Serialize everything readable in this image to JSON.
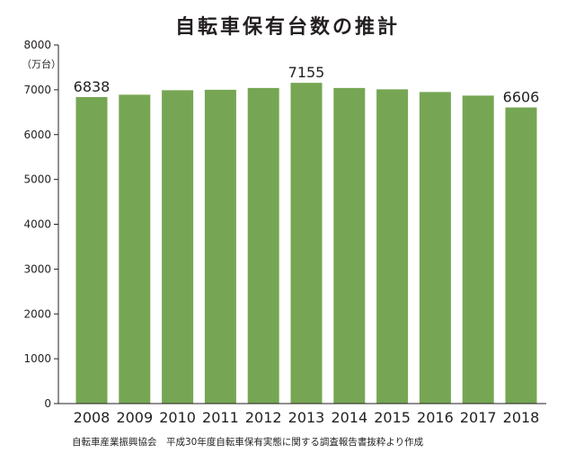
{
  "chart_data": {
    "type": "bar",
    "title": "自転車保有台数の推計",
    "unit": "（万台）",
    "categories": [
      "2008",
      "2009",
      "2010",
      "2011",
      "2012",
      "2013",
      "2014",
      "2015",
      "2016",
      "2017",
      "2018"
    ],
    "values": [
      6838,
      6890,
      6990,
      7000,
      7040,
      7155,
      7040,
      7010,
      6950,
      6870,
      6606
    ],
    "data_labels": [
      {
        "category": "2008",
        "text": "6838"
      },
      {
        "category": "2013",
        "text": "7155"
      },
      {
        "category": "2018",
        "text": "6606"
      }
    ],
    "ylim": [
      0,
      8000
    ],
    "yticks": [
      0,
      1000,
      2000,
      3000,
      4000,
      5000,
      6000,
      7000,
      8000
    ],
    "grid": false,
    "legend": "none",
    "bar_color": "#76a653",
    "source": "自転車産業振興協会　平成30年度自転車保有実態に関する調査報告書抜粋より作成"
  }
}
